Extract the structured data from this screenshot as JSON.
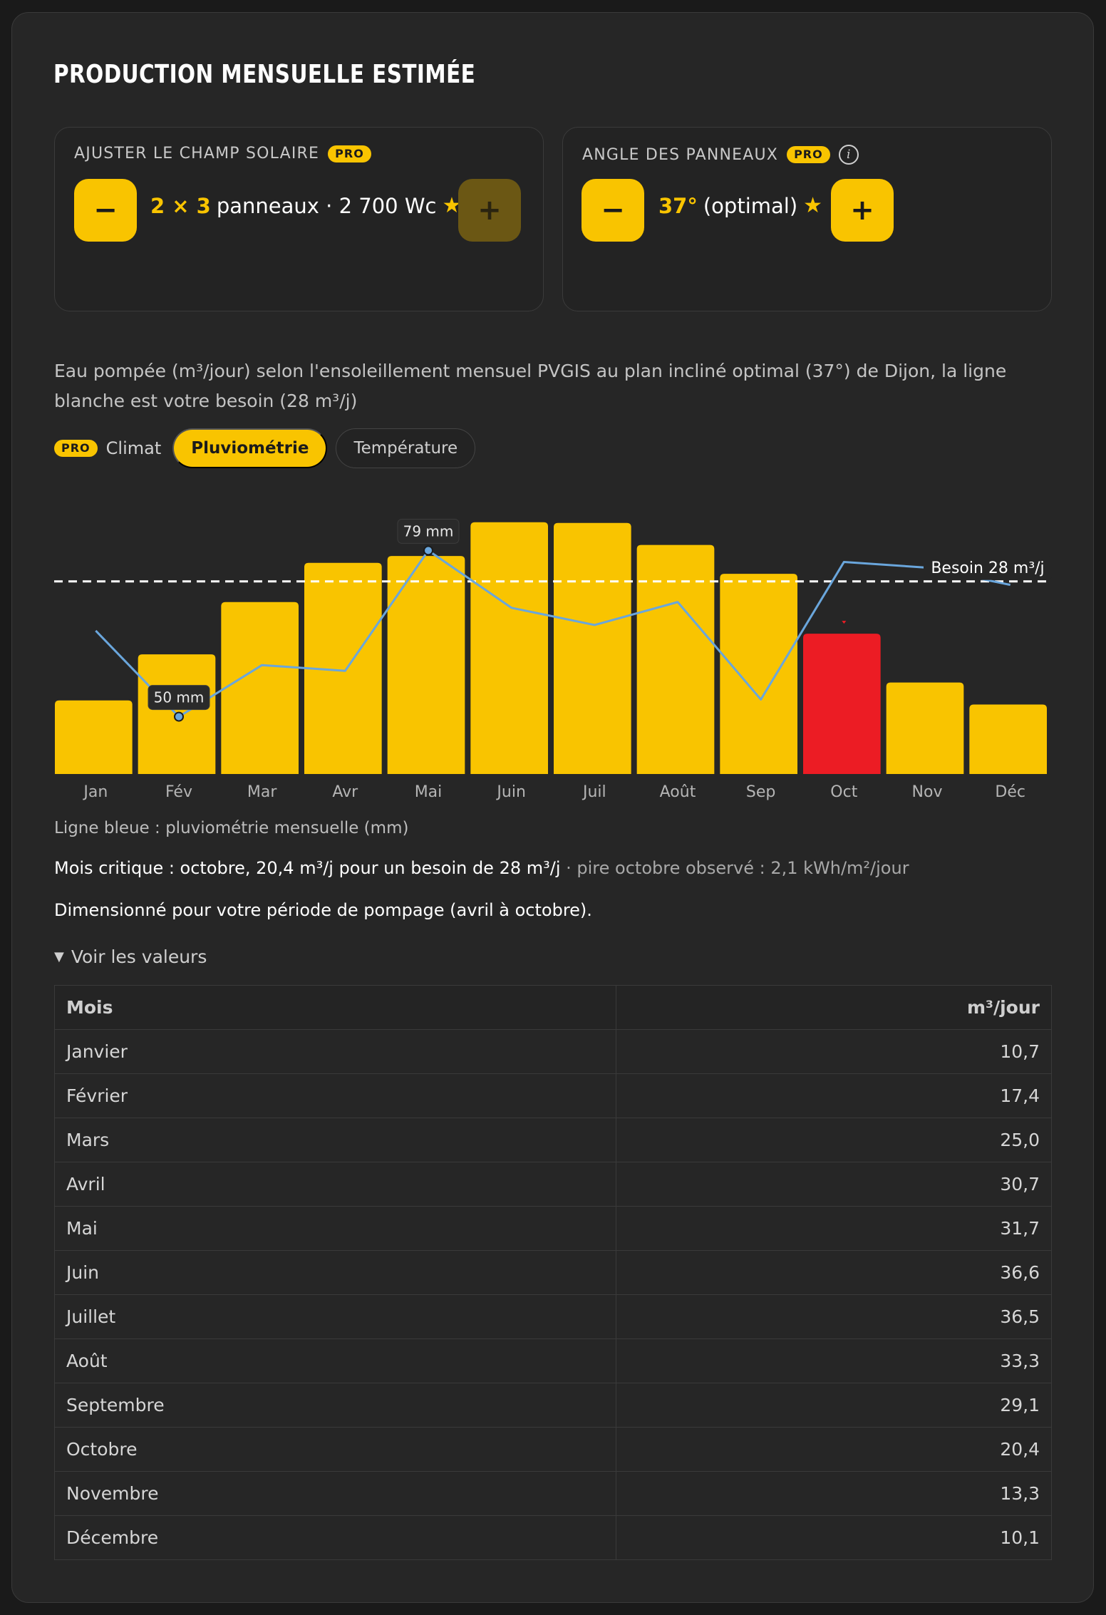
{
  "title": "Production mensuelle estimée",
  "field_panel": {
    "label": "AJUSTER LE CHAMP SOLAIRE",
    "badge": "PRO",
    "minus": "−",
    "plus": "+",
    "value_accent": "2 × 3",
    "value_text": "panneaux · 2 700 Wc",
    "star": "★"
  },
  "angle_panel": {
    "label": "ANGLE DES PANNEAUX",
    "badge": "PRO",
    "info": "i",
    "minus": "−",
    "plus": "+",
    "value_accent": "37°",
    "value_text": "(optimal)",
    "star": "★"
  },
  "description": "Eau pompée (m³/jour) selon l'ensoleillement mensuel PVGIS au plan incliné optimal (37°) de Dijon, la ligne blanche est votre besoin (28 m³/j)",
  "climat": {
    "badge": "PRO",
    "label": "Climat",
    "tabs": [
      {
        "label": "Pluviométrie",
        "active": true
      },
      {
        "label": "Température",
        "active": false
      }
    ]
  },
  "chart_data": {
    "type": "bar",
    "categories": [
      "Jan",
      "Fév",
      "Mar",
      "Avr",
      "Mai",
      "Juin",
      "Juil",
      "Août",
      "Sep",
      "Oct",
      "Nov",
      "Déc"
    ],
    "values": [
      10.7,
      17.4,
      25.0,
      30.7,
      31.7,
      36.6,
      36.5,
      33.3,
      29.1,
      20.4,
      13.3,
      10.1
    ],
    "critical_index": 9,
    "bar_color": "#f9c400",
    "critical_color": "#ec1c24",
    "ylim": [
      0,
      40
    ],
    "threshold": {
      "value": 28,
      "label": "Besoin 28 m³/j",
      "color": "#ffffff"
    },
    "rain_series": {
      "color": "#6aa6dc",
      "values": [
        65,
        50,
        59,
        58,
        79,
        69,
        66,
        70,
        53,
        77,
        76,
        73
      ],
      "ylim": [
        40,
        88
      ],
      "min_label": "50 mm",
      "max_label": "79 mm",
      "min_index": 1,
      "max_index": 4
    }
  },
  "chart_note": "Ligne bleue : pluviométrie mensuelle (mm)",
  "critical": {
    "main": "Mois critique : octobre, 20,4 m³/j pour un besoin de 28 m³/j",
    "secondary": " · pire octobre observé : 2,1 kWh/m²/jour"
  },
  "sizing": "Dimensionné pour votre période de pompage (avril à octobre).",
  "toggle": {
    "icon": "▼",
    "label": "Voir les valeurs"
  },
  "table": {
    "headers": [
      "Mois",
      "m³/jour"
    ],
    "rows": [
      [
        "Janvier",
        "10,7"
      ],
      [
        "Février",
        "17,4"
      ],
      [
        "Mars",
        "25,0"
      ],
      [
        "Avril",
        "30,7"
      ],
      [
        "Mai",
        "31,7"
      ],
      [
        "Juin",
        "36,6"
      ],
      [
        "Juillet",
        "36,5"
      ],
      [
        "Août",
        "33,3"
      ],
      [
        "Septembre",
        "29,1"
      ],
      [
        "Octobre",
        "20,4"
      ],
      [
        "Novembre",
        "13,3"
      ],
      [
        "Décembre",
        "10,1"
      ]
    ]
  }
}
